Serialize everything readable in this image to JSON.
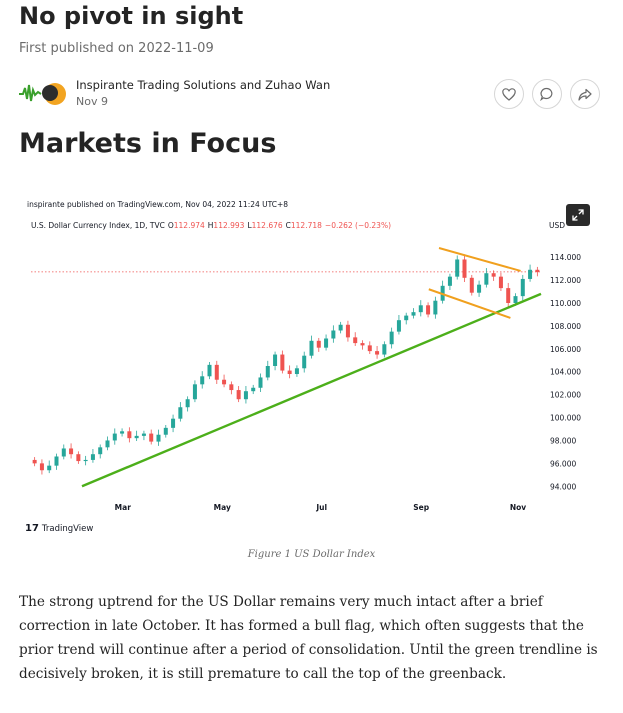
{
  "article": {
    "title": "No pivot in sight",
    "first_published": "First published on 2022-11-09",
    "author": "Inspirante Trading Solutions and Zuhao Wan",
    "date": "Nov 9",
    "section_title": "Markets in Focus",
    "caption": "Figure 1 US Dollar Index",
    "body": "The strong uptrend for the US Dollar remains very much intact after a brief correction in late October. It has formed a bull flag, which often suggests that the prior trend will continue after a period of consolidation. Until the green trendline is decisively broken, it is still premature to call the top of the greenback."
  },
  "actions": {
    "like_icon": "heart-icon",
    "comment_icon": "comment-icon",
    "share_icon": "share-icon"
  },
  "chart_image": {
    "credit": "inspirante published on TradingView.com, Nov 04, 2022 11:24 UTC+8",
    "symbol_line": "U.S. Dollar Currency Index, 1D, TVC",
    "ohlc": {
      "open_label": "O",
      "open": "112.974",
      "high_label": "H",
      "high": "112.993",
      "low_label": "L",
      "low": "112.676",
      "close_label": "C",
      "close": "112.718",
      "change": "−0.262 (−0.23%)"
    },
    "currency_label": "USD",
    "branding": "TradingView",
    "colors": {
      "up": "#26a69a",
      "down": "#ef5350",
      "trendline": "#4caf1a",
      "flag": "#f0a01e",
      "price_line": "#ef5350"
    }
  },
  "chart_data": {
    "type": "candlestick",
    "x_tick_labels": [
      "Mar",
      "May",
      "Jul",
      "Sep",
      "Nov"
    ],
    "y_tick_labels": [
      "114.000",
      "112.000",
      "110.000",
      "108.000",
      "106.000",
      "104.000",
      "102.000",
      "100.000",
      "98.000",
      "96.000",
      "94.000"
    ],
    "ylim": [
      93.5,
      115.5
    ],
    "current_price": 112.718,
    "closes_approx": [
      96.0,
      95.4,
      95.8,
      96.6,
      97.3,
      96.8,
      96.2,
      96.3,
      96.8,
      97.4,
      98.0,
      98.6,
      98.8,
      98.2,
      98.4,
      98.6,
      97.9,
      98.5,
      99.1,
      99.9,
      100.9,
      101.6,
      102.9,
      103.6,
      104.6,
      103.3,
      102.9,
      102.4,
      101.6,
      102.3,
      102.6,
      103.5,
      104.5,
      105.5,
      104.1,
      103.8,
      104.3,
      105.4,
      106.7,
      106.1,
      106.9,
      107.6,
      108.1,
      107.0,
      106.5,
      106.3,
      105.8,
      105.5,
      106.4,
      107.5,
      108.5,
      108.9,
      109.2,
      109.8,
      109.0,
      110.2,
      111.5,
      112.3,
      113.8,
      112.2,
      110.9,
      111.6,
      112.6,
      112.3,
      111.3,
      110.0,
      110.6,
      112.1,
      112.9,
      112.7
    ],
    "trendlines": [
      {
        "name": "uptrend support",
        "points": [
          [
            0.1,
            94.0
          ],
          [
            1.0,
            110.8
          ]
        ]
      },
      {
        "name": "flag upper",
        "points": [
          [
            0.8,
            114.8
          ],
          [
            0.96,
            112.8
          ]
        ]
      },
      {
        "name": "flag lower",
        "points": [
          [
            0.78,
            111.2
          ],
          [
            0.94,
            108.7
          ]
        ]
      }
    ],
    "grid": false,
    "legend": "none"
  }
}
